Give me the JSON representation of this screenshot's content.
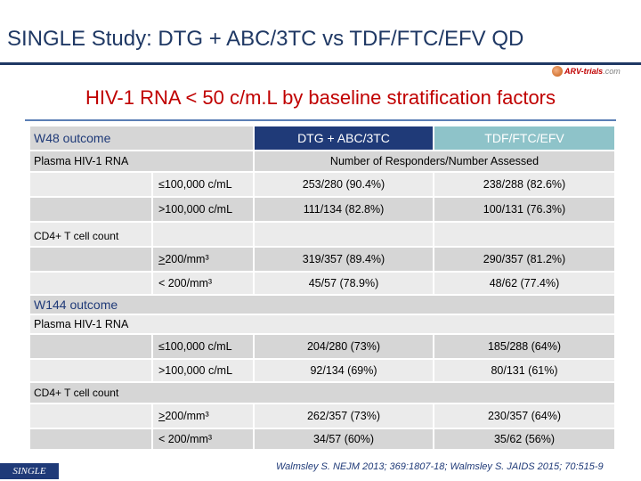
{
  "slide": {
    "title": "SINGLE Study: DTG + ABC/3TC vs TDF/FTC/EFV QD",
    "subtitle": "HIV-1 RNA < 50 c/m.L by baseline stratification factors",
    "logo": {
      "brand": "ARV-trials",
      "suffix": ".com"
    },
    "footer_reference": "Walmsley S. NEJM 2013; 369:1807-18; Walmsley S. JAIDS 2015; 70:515-9",
    "badge": "SINGLE"
  },
  "table": {
    "arm1": "DTG + ABC/3TC",
    "arm2": "TDF/FTC/EFV",
    "responders_header": "Number of Responders/Number Assessed",
    "sections": [
      {
        "title": "W48 outcome",
        "groups": [
          {
            "label": "Plasma HIV-1 RNA",
            "rows": [
              {
                "stratum": "≤100,000 c/mL",
                "arm1": "253/280 (90.4%)",
                "arm2": "238/288 (82.6%)"
              },
              {
                "stratum": ">100,000 c/mL",
                "arm1": "111/134 (82.8%)",
                "arm2": "100/131 (76.3%)"
              }
            ]
          },
          {
            "label": "CD4+ T cell count",
            "rows": [
              {
                "stratum_symbol": ">",
                "stratum_value": " 200/mm³",
                "arm1": "319/357 (89.4%)",
                "arm2": "290/357 (81.2%)"
              },
              {
                "stratum": "< 200/mm³",
                "arm1": "45/57 (78.9%)",
                "arm2": "48/62 (77.4%)"
              }
            ]
          }
        ]
      },
      {
        "title": "W144 outcome",
        "groups": [
          {
            "label": "Plasma HIV-1 RNA",
            "rows": [
              {
                "stratum": "≤100,000 c/mL",
                "arm1": "204/280 (73%)",
                "arm2": "185/288 (64%)"
              },
              {
                "stratum": ">100,000 c/mL",
                "arm1": "92/134 (69%)",
                "arm2": "80/131 (61%)"
              }
            ]
          },
          {
            "label": "CD4+ T cell count",
            "rows": [
              {
                "stratum_symbol": ">",
                "stratum_value": " 200/mm³",
                "arm1": "262/357 (73%)",
                "arm2": "230/357 (64%)"
              },
              {
                "stratum": "< 200/mm³",
                "arm1": "34/57 (60%)",
                "arm2": "35/62 (56%)"
              }
            ]
          }
        ]
      }
    ]
  }
}
